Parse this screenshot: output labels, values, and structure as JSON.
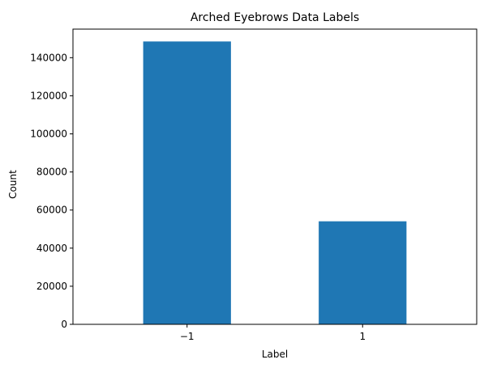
{
  "chart_data": {
    "type": "bar",
    "title": "Arched Eyebrows Data Labels",
    "xlabel": "Label",
    "ylabel": "Count",
    "categories": [
      "−1",
      "1"
    ],
    "values": [
      148509,
      54091
    ],
    "ylim": [
      0,
      155000
    ],
    "yticks": [
      0,
      20000,
      40000,
      60000,
      80000,
      100000,
      120000,
      140000
    ],
    "bar_color": "#1f77b4",
    "grid": false,
    "legend": "none"
  }
}
